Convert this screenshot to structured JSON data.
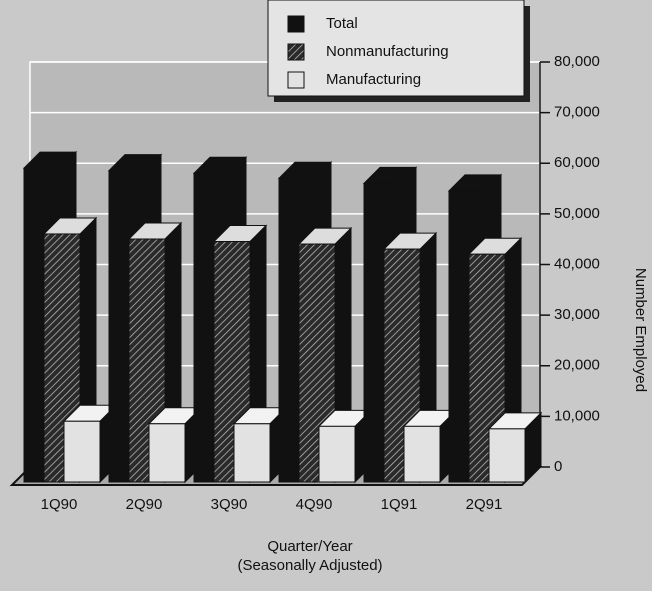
{
  "chart_data": {
    "type": "bar3d",
    "categories": [
      "1Q90",
      "2Q90",
      "3Q90",
      "4Q90",
      "1Q91",
      "2Q91"
    ],
    "series": [
      {
        "name": "Total",
        "color": "#111111",
        "values": [
          62000,
          61500,
          61000,
          60000,
          59000,
          57500
        ]
      },
      {
        "name": "Nonmanufacturing",
        "color": "#2a2a2a",
        "hatch": true,
        "values": [
          49000,
          48000,
          47500,
          47000,
          46000,
          45000
        ]
      },
      {
        "name": "Manufacturing",
        "color": "#e2e2e2",
        "values": [
          12000,
          11500,
          11500,
          11000,
          11000,
          10500
        ]
      }
    ],
    "ylim": [
      0,
      80000
    ],
    "yticks": [
      0,
      {
        "value": 10000,
        "label": "10,000"
      },
      {
        "value": 20000,
        "label": "20,000"
      },
      {
        "value": 30000,
        "label": "30,000"
      },
      {
        "value": 40000,
        "label": "40,000"
      },
      {
        "value": 50000,
        "label": "50,000"
      },
      {
        "value": 60000,
        "label": "60,000"
      },
      {
        "value": 70000,
        "label": "70,000"
      },
      {
        "value": 80000,
        "label": "80,000"
      }
    ],
    "ylabel": "Number Employed",
    "xlabel": [
      "Quarter/Year",
      "(Seasonally Adjusted)"
    ],
    "grid": true,
    "legend": "top"
  }
}
